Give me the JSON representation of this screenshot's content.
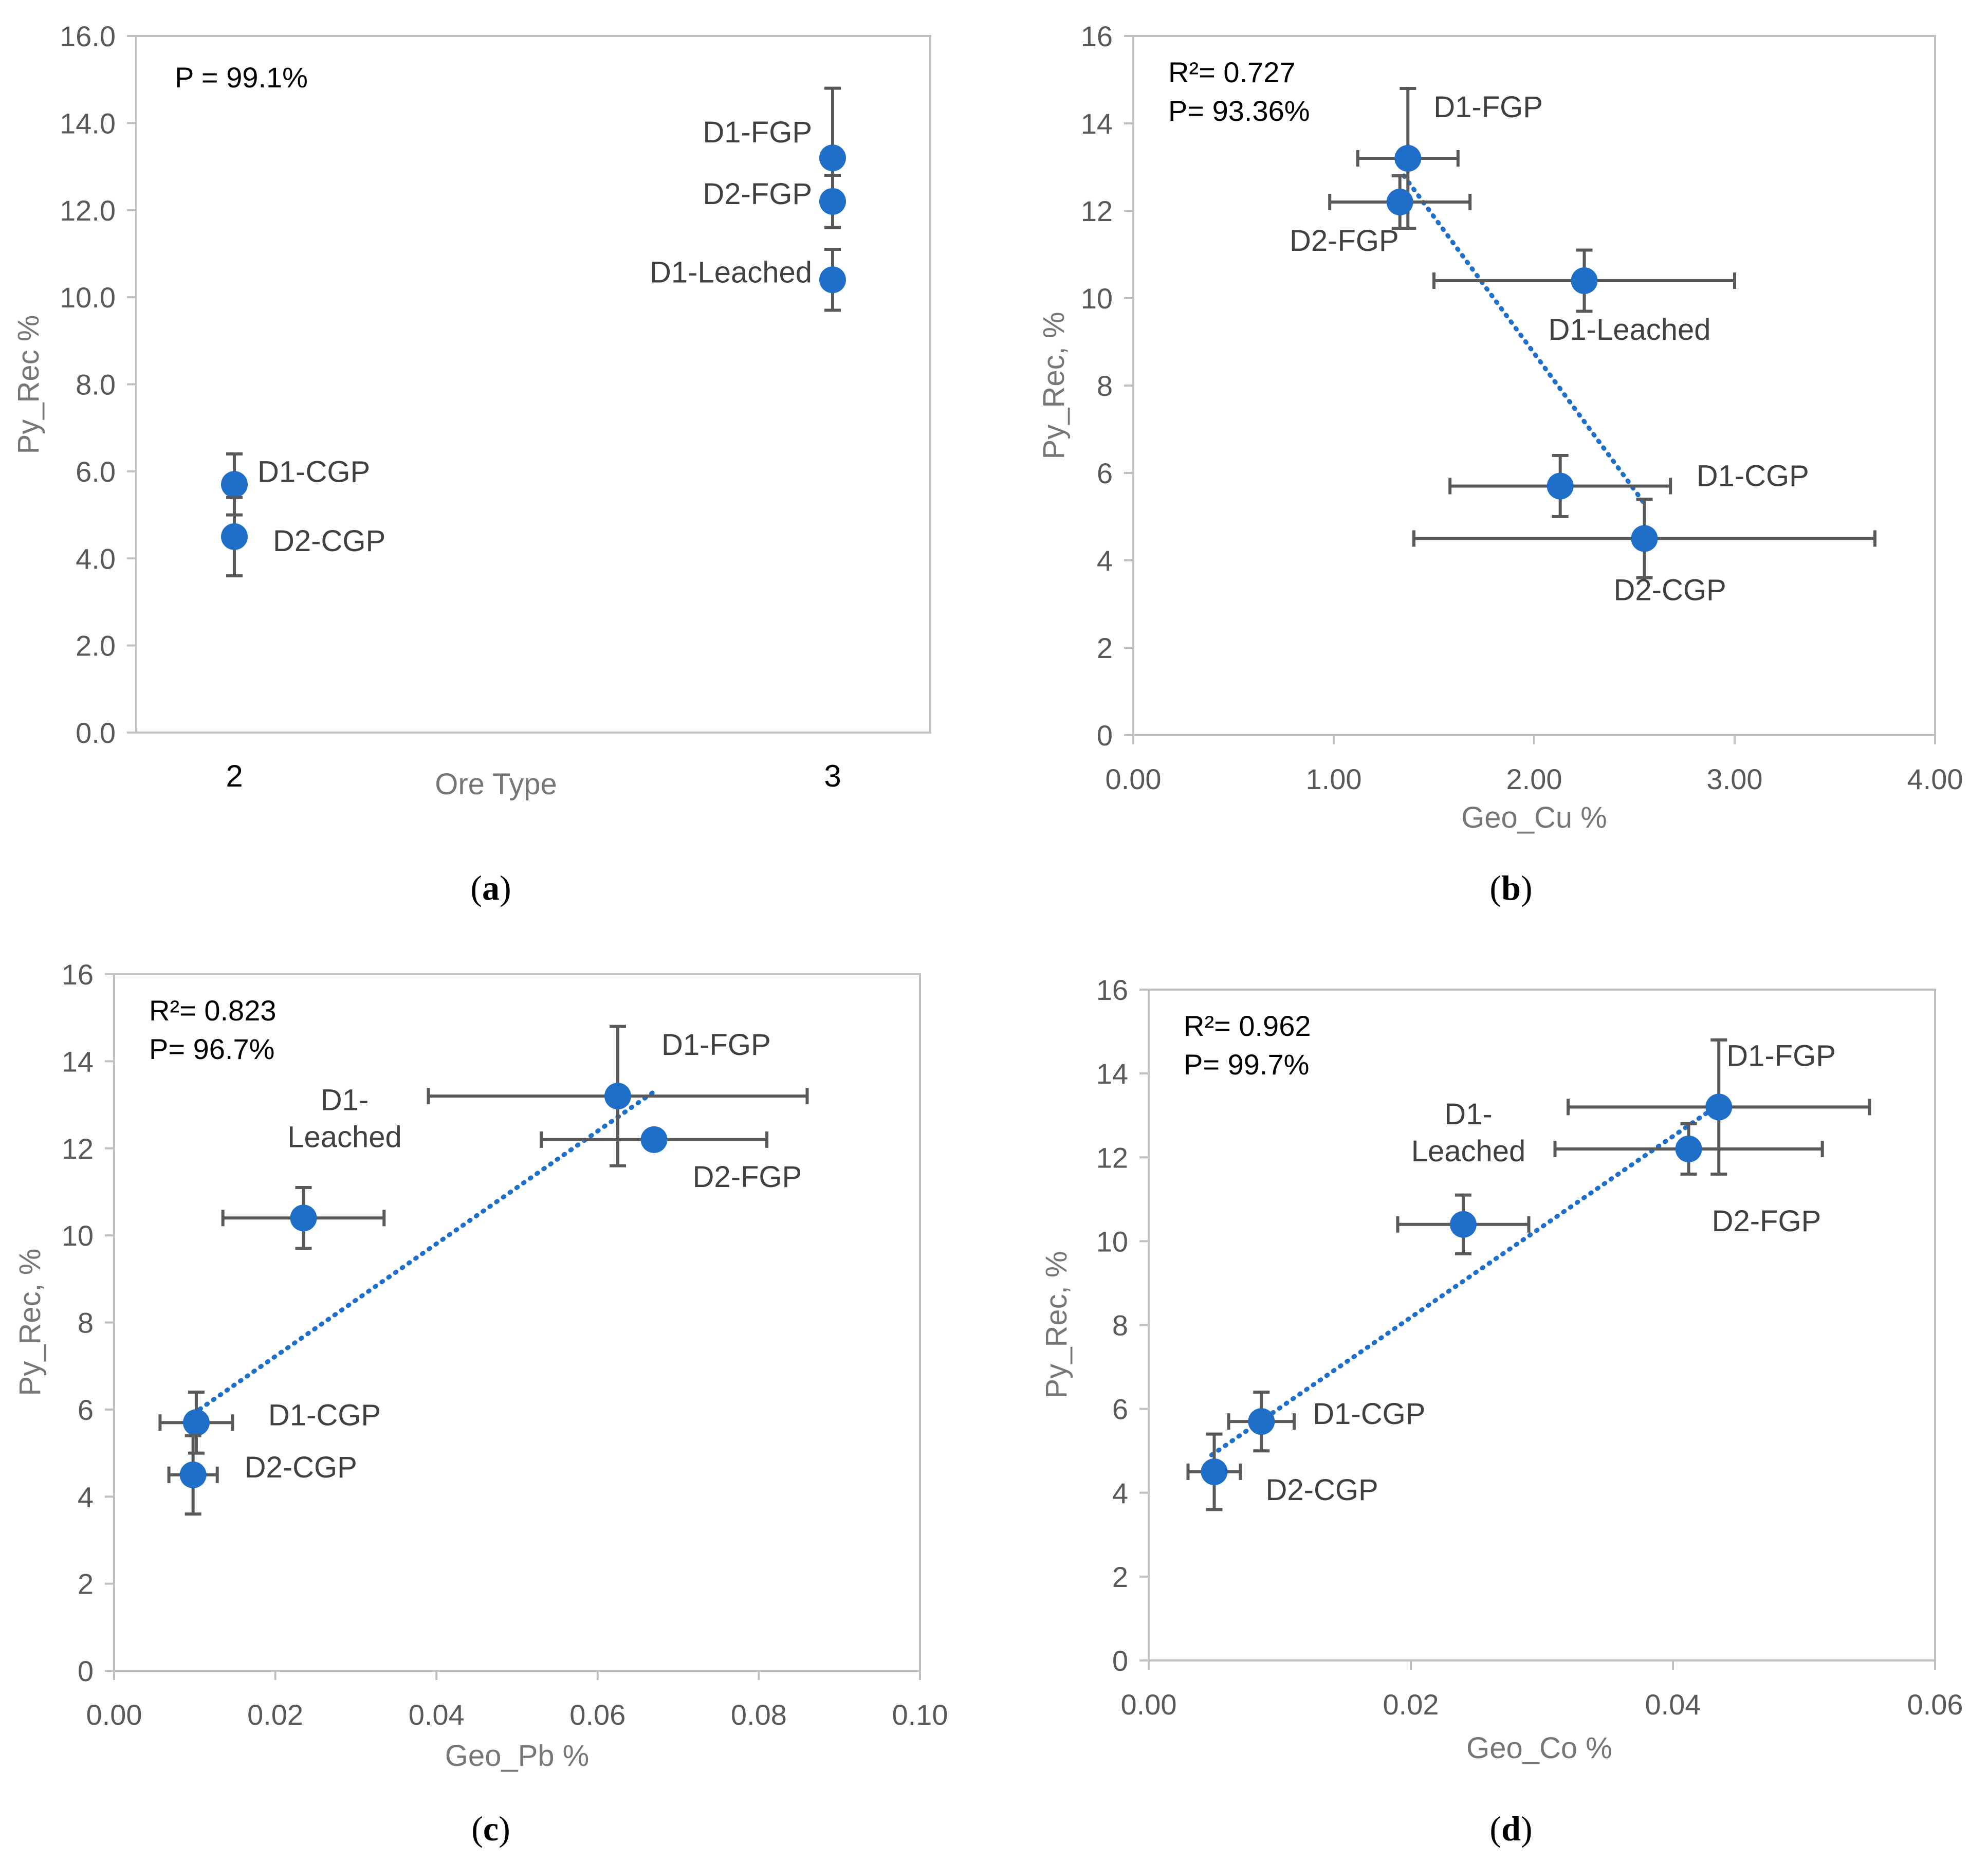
{
  "chart_data": [
    {
      "id": "a",
      "type": "scatter",
      "caption_letter": "a",
      "xlabel": "Ore Type",
      "ylabel": "Py_Rec %",
      "categories": [
        "2",
        "3"
      ],
      "ylim": [
        0,
        16
      ],
      "yticks": [
        0,
        2,
        4,
        6,
        8,
        10,
        12,
        14,
        16
      ],
      "ytick_decimals": 1,
      "stats": [
        "P = 99.1%"
      ],
      "points": [
        {
          "label": "D1-CGP",
          "x": 2,
          "y": 5.7,
          "yerr": 0.7,
          "label_side": "right"
        },
        {
          "label": "D2-CGP",
          "x": 2,
          "y": 4.5,
          "yerr": 0.9,
          "label_side": "right"
        },
        {
          "label": "D1-FGP",
          "x": 3,
          "y": 13.2,
          "yerr": 1.6,
          "label_side": "left"
        },
        {
          "label": "D2-FGP",
          "x": 3,
          "y": 12.2,
          "yerr": 0.6,
          "label_side": "left"
        },
        {
          "label": "D1-Leached",
          "x": 3,
          "y": 10.4,
          "yerr": 0.7,
          "label_side": "left"
        }
      ]
    },
    {
      "id": "b",
      "type": "scatter",
      "caption_letter": "b",
      "xlabel": "Geo_Cu %",
      "ylabel": "Py_Rec, %",
      "xlim": [
        0,
        4
      ],
      "xticks": [
        0,
        1,
        2,
        3,
        4
      ],
      "xtick_decimals": 2,
      "ylim": [
        0,
        16
      ],
      "yticks": [
        0,
        2,
        4,
        6,
        8,
        10,
        12,
        14,
        16
      ],
      "ytick_decimals": 0,
      "stats": [
        "R²= 0.727",
        "P= 93.36%"
      ],
      "trendline": {
        "x": [
          1.35,
          2.55
        ],
        "y": [
          12.8,
          5.3
        ]
      },
      "points": [
        {
          "label": "D1-FGP",
          "x": 1.37,
          "y": 13.2,
          "xerr": 0.25,
          "yerr": 1.6
        },
        {
          "label": "D2-FGP",
          "x": 1.33,
          "y": 12.2,
          "xerr": 0.35,
          "yerr": 0.6
        },
        {
          "label": "D1-Leached",
          "x": 2.25,
          "y": 10.4,
          "xerr": 0.75,
          "yerr": 0.7
        },
        {
          "label": "D1-CGP",
          "x": 2.13,
          "y": 5.7,
          "xerr": 0.55,
          "yerr": 0.7
        },
        {
          "label": "D2-CGP",
          "x": 2.55,
          "y": 4.5,
          "xerr": 1.15,
          "yerr": 0.9
        }
      ]
    },
    {
      "id": "c",
      "type": "scatter",
      "caption_letter": "c",
      "xlabel": "Geo_Pb %",
      "ylabel": "Py_Rec, %",
      "xlim": [
        0,
        0.1
      ],
      "xticks": [
        0,
        0.02,
        0.04,
        0.06,
        0.08,
        0.1
      ],
      "xtick_decimals": 2,
      "ylim": [
        0,
        16
      ],
      "yticks": [
        0,
        2,
        4,
        6,
        8,
        10,
        12,
        14,
        16
      ],
      "ytick_decimals": 0,
      "stats": [
        "R²= 0.823",
        "P= 96.7%"
      ],
      "trendline": {
        "x": [
          0.0098,
          0.067
        ],
        "y": [
          5.9,
          13.3
        ]
      },
      "points": [
        {
          "label": "D1-FGP",
          "x": 0.0625,
          "y": 13.2,
          "xerr": 0.0235,
          "yerr": 1.6
        },
        {
          "label": "D2-FGP",
          "x": 0.067,
          "y": 12.2,
          "xerr": 0.014,
          "yerr": 0.0
        },
        {
          "label": "D1-Leached",
          "label_lines": [
            "D1-",
            "Leached"
          ],
          "x": 0.0235,
          "y": 10.4,
          "xerr": 0.01,
          "yerr": 0.7
        },
        {
          "label": "D1-CGP",
          "x": 0.0102,
          "y": 5.7,
          "xerr": 0.0045,
          "yerr": 0.7
        },
        {
          "label": "D2-CGP",
          "x": 0.0098,
          "y": 4.5,
          "xerr": 0.003,
          "yerr": 0.9
        }
      ]
    },
    {
      "id": "d",
      "type": "scatter",
      "caption_letter": "d",
      "xlabel": "Geo_Co %",
      "ylabel": "Py_Rec, %",
      "xlim": [
        0,
        0.06
      ],
      "xticks": [
        0,
        0.02,
        0.04,
        0.06
      ],
      "xtick_decimals": 2,
      "ylim": [
        0,
        16
      ],
      "yticks": [
        0,
        2,
        4,
        6,
        8,
        10,
        12,
        14,
        16
      ],
      "ytick_decimals": 0,
      "stats": [
        "R²= 0.962",
        "P= 99.7%"
      ],
      "trendline": {
        "x": [
          0.0048,
          0.0437
        ],
        "y": [
          4.9,
          13.3
        ]
      },
      "points": [
        {
          "label": "D1-FGP",
          "x": 0.0435,
          "y": 13.2,
          "xerr": 0.0115,
          "yerr": 1.6
        },
        {
          "label": "D2-FGP",
          "x": 0.0412,
          "y": 12.2,
          "xerr": 0.0102,
          "yerr": 0.6
        },
        {
          "label": "D1-Leached",
          "label_lines": [
            "D1-",
            "Leached"
          ],
          "x": 0.024,
          "y": 10.4,
          "xerr": 0.005,
          "yerr": 0.7
        },
        {
          "label": "D1-CGP",
          "x": 0.0086,
          "y": 5.7,
          "xerr": 0.0025,
          "yerr": 0.7
        },
        {
          "label": "D2-CGP",
          "x": 0.005,
          "y": 4.5,
          "xerr": 0.002,
          "yerr": 0.9
        }
      ]
    }
  ]
}
